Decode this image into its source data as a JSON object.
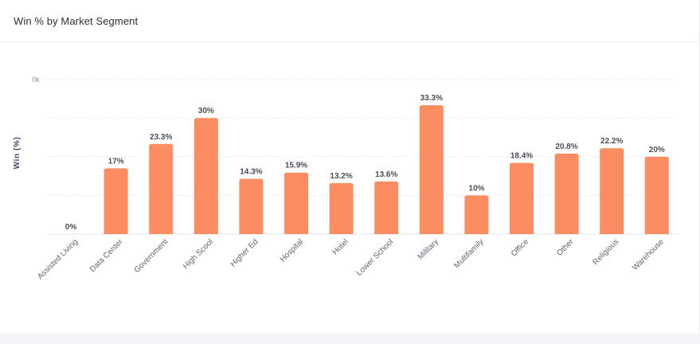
{
  "card": {
    "title": "Win % by Market Segment"
  },
  "chart_data": {
    "type": "bar",
    "title": "Win % by Market Segment",
    "xlabel": "",
    "ylabel": "Win (%)",
    "y_tick_labels": [
      "0k"
    ],
    "ylim": [
      0,
      40
    ],
    "grid": true,
    "legend": "none",
    "bar_color": "#fc8d62",
    "categories": [
      "Assisted Living",
      "Data Center",
      "Government",
      "High Scool",
      "Higher Ed",
      "Hospital",
      "Hotel",
      "Lower School",
      "Military",
      "Multifamily",
      "Office",
      "Other",
      "Religious",
      "Warehouse"
    ],
    "values": [
      0,
      17,
      23.3,
      30,
      14.3,
      15.9,
      13.2,
      13.6,
      33.3,
      10,
      18.4,
      20.8,
      22.2,
      20
    ],
    "data_labels": [
      "0%",
      "17%",
      "23.3%",
      "30%",
      "14.3%",
      "15.9%",
      "13.2%",
      "13.6%",
      "33.3%",
      "10%",
      "18.4%",
      "20.8%",
      "22.2%",
      "20%"
    ]
  }
}
